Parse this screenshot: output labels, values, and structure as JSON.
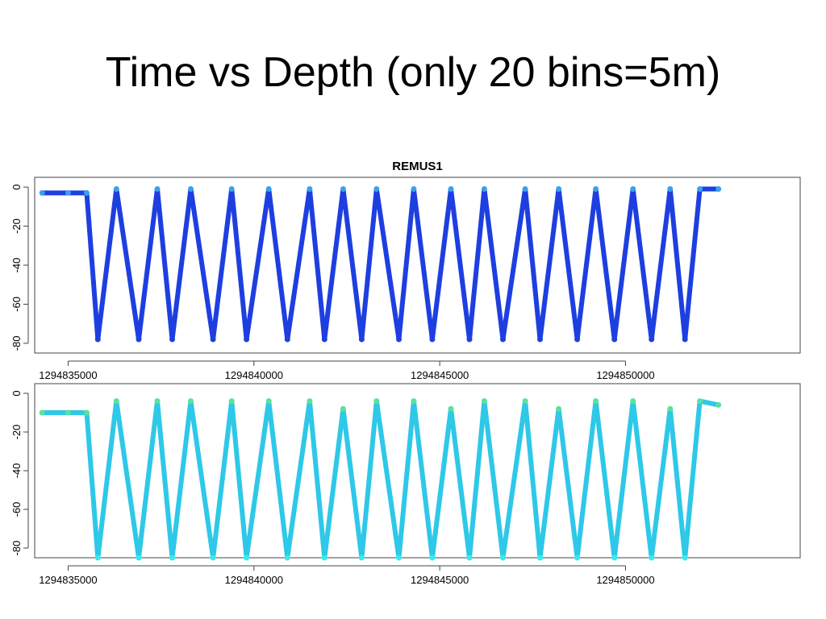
{
  "slide": {
    "title": "Time vs Depth (only 20 bins=5m)"
  },
  "colors": {
    "panel1_line": "#1e3fe0",
    "panel1_surface": "#3aa0ee",
    "panel2_line": "#2ec8e8",
    "panel2_bottom": "#33ecec",
    "panel2_surface": "#5be29a",
    "hot_spot": "#e03a1a"
  },
  "chart_data": [
    {
      "type": "scatter",
      "title": "REMUS1",
      "xlabel": "",
      "ylabel": "",
      "xlim": [
        1294834100,
        1294854700
      ],
      "ylim": [
        -85,
        5
      ],
      "xticks": [
        1294835000,
        1294840000,
        1294845000,
        1294850000
      ],
      "xtick_labels": [
        "1294835000",
        "1294840000",
        "1294845000",
        "1294850000"
      ],
      "yticks": [
        0,
        -20,
        -40,
        -60,
        -80
      ],
      "ytick_labels": [
        "0",
        "-20",
        "-40",
        "-60",
        "-80"
      ],
      "grid": false,
      "series": [
        {
          "x": [
            1294834300,
            1294835000,
            1294835500,
            1294835800,
            1294836300,
            1294836900,
            1294837400,
            1294837800,
            1294838300,
            1294838900,
            1294839400,
            1294839800,
            1294840400,
            1294840900,
            1294841500,
            1294841900,
            1294842400,
            1294842900,
            1294843300,
            1294843900,
            1294844300,
            1294844800,
            1294845300,
            1294845800,
            1294846200,
            1294846700,
            1294847300,
            1294847700,
            1294848200,
            1294848700,
            1294849200,
            1294849700,
            1294850200,
            1294850700,
            1294851200,
            1294851600,
            1294852000,
            1294852500
          ],
          "y": [
            -3,
            -3,
            -3,
            -78,
            -1,
            -78,
            -1,
            -78,
            -1,
            -78,
            -1,
            -78,
            -1,
            -78,
            -1,
            -78,
            -1,
            -78,
            -1,
            -78,
            -1,
            -78,
            -1,
            -78,
            -1,
            -78,
            -1,
            -78,
            -1,
            -78,
            -1,
            -78,
            -1,
            -78,
            -1,
            -78,
            -1,
            -1
          ]
        }
      ]
    },
    {
      "type": "scatter",
      "title": "",
      "xlabel": "",
      "ylabel": "",
      "xlim": [
        1294834100,
        1294854700
      ],
      "ylim": [
        -85,
        5
      ],
      "xticks": [
        1294835000,
        1294840000,
        1294845000,
        1294850000
      ],
      "xtick_labels": [
        "1294835000",
        "1294840000",
        "1294845000",
        "1294850000"
      ],
      "yticks": [
        0,
        -20,
        -40,
        -60,
        -80
      ],
      "ytick_labels": [
        "0",
        "-20",
        "-40",
        "-60",
        "-80"
      ],
      "grid": false,
      "series": [
        {
          "x": [
            1294834300,
            1294835000,
            1294835500,
            1294835800,
            1294836300,
            1294836900,
            1294837400,
            1294837800,
            1294838300,
            1294838900,
            1294839400,
            1294839800,
            1294840400,
            1294840900,
            1294841500,
            1294841900,
            1294842400,
            1294842900,
            1294843300,
            1294843900,
            1294844300,
            1294844800,
            1294845300,
            1294845800,
            1294846200,
            1294846700,
            1294847300,
            1294847700,
            1294848200,
            1294848700,
            1294849200,
            1294849700,
            1294850200,
            1294850700,
            1294851200,
            1294851600,
            1294852000,
            1294852500
          ],
          "y": [
            -10,
            -10,
            -10,
            -85,
            -4,
            -85,
            -4,
            -85,
            -4,
            -85,
            -4,
            -85,
            -4,
            -85,
            -4,
            -85,
            -8,
            -85,
            -4,
            -85,
            -4,
            -85,
            -8,
            -85,
            -4,
            -85,
            -4,
            -85,
            -8,
            -85,
            -4,
            -85,
            -4,
            -85,
            -8,
            -85,
            -4,
            -6
          ]
        }
      ]
    }
  ]
}
